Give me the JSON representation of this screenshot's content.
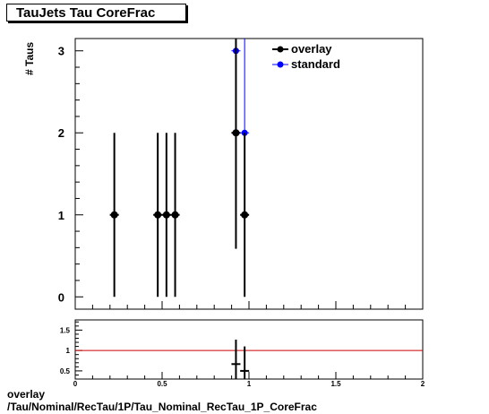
{
  "title": "TauJets Tau CoreFrac",
  "footer": {
    "line1": "overlay",
    "line2": "/Tau/Nominal/RecTau/1P/Tau_Nominal_RecTau_1P_CoreFrac"
  },
  "chart_data": [
    {
      "type": "scatter",
      "title": "TauJets Tau CoreFrac",
      "ylabel": "# Taus",
      "xlabel": "",
      "xlim": [
        0,
        2
      ],
      "ylim": [
        -0.15,
        3.15
      ],
      "yticks": [
        0,
        1,
        2,
        3
      ],
      "legend": {
        "placement": "top-right"
      },
      "series": [
        {
          "name": "overlay",
          "color": "#000000",
          "points": [
            {
              "x": 0.225,
              "y": 1,
              "err": 1
            },
            {
              "x": 0.475,
              "y": 1,
              "err": 1
            },
            {
              "x": 0.525,
              "y": 1,
              "err": 1
            },
            {
              "x": 0.575,
              "y": 1,
              "err": 1
            },
            {
              "x": 0.925,
              "y": 2,
              "err": 1.414
            },
            {
              "x": 0.975,
              "y": 1,
              "err": 1
            }
          ]
        },
        {
          "name": "standard",
          "color": "#0000ff",
          "points": [
            {
              "x": 0.925,
              "y": 3,
              "err": 1.732
            },
            {
              "x": 0.975,
              "y": 2,
              "err": 1.414
            }
          ]
        }
      ]
    },
    {
      "type": "scatter",
      "xlim": [
        0,
        2
      ],
      "ylim": [
        0.3,
        1.75
      ],
      "xticks": [
        0,
        0.5,
        1,
        1.5,
        2
      ],
      "xticklabels": [
        "0",
        "0.5",
        "1",
        "1.5",
        "2"
      ],
      "yticks": [
        0.5,
        1,
        1.5
      ],
      "yticklabels": [
        "0.5",
        "1",
        "1.5"
      ],
      "reference_line": {
        "y": 1,
        "color": "#cc0000"
      },
      "series": [
        {
          "color": "#000000",
          "points": [
            {
              "x": 0.925,
              "y": 0.667,
              "err": 0.6
            },
            {
              "x": 0.975,
              "y": 0.5,
              "err": 0.6
            }
          ]
        }
      ]
    }
  ]
}
